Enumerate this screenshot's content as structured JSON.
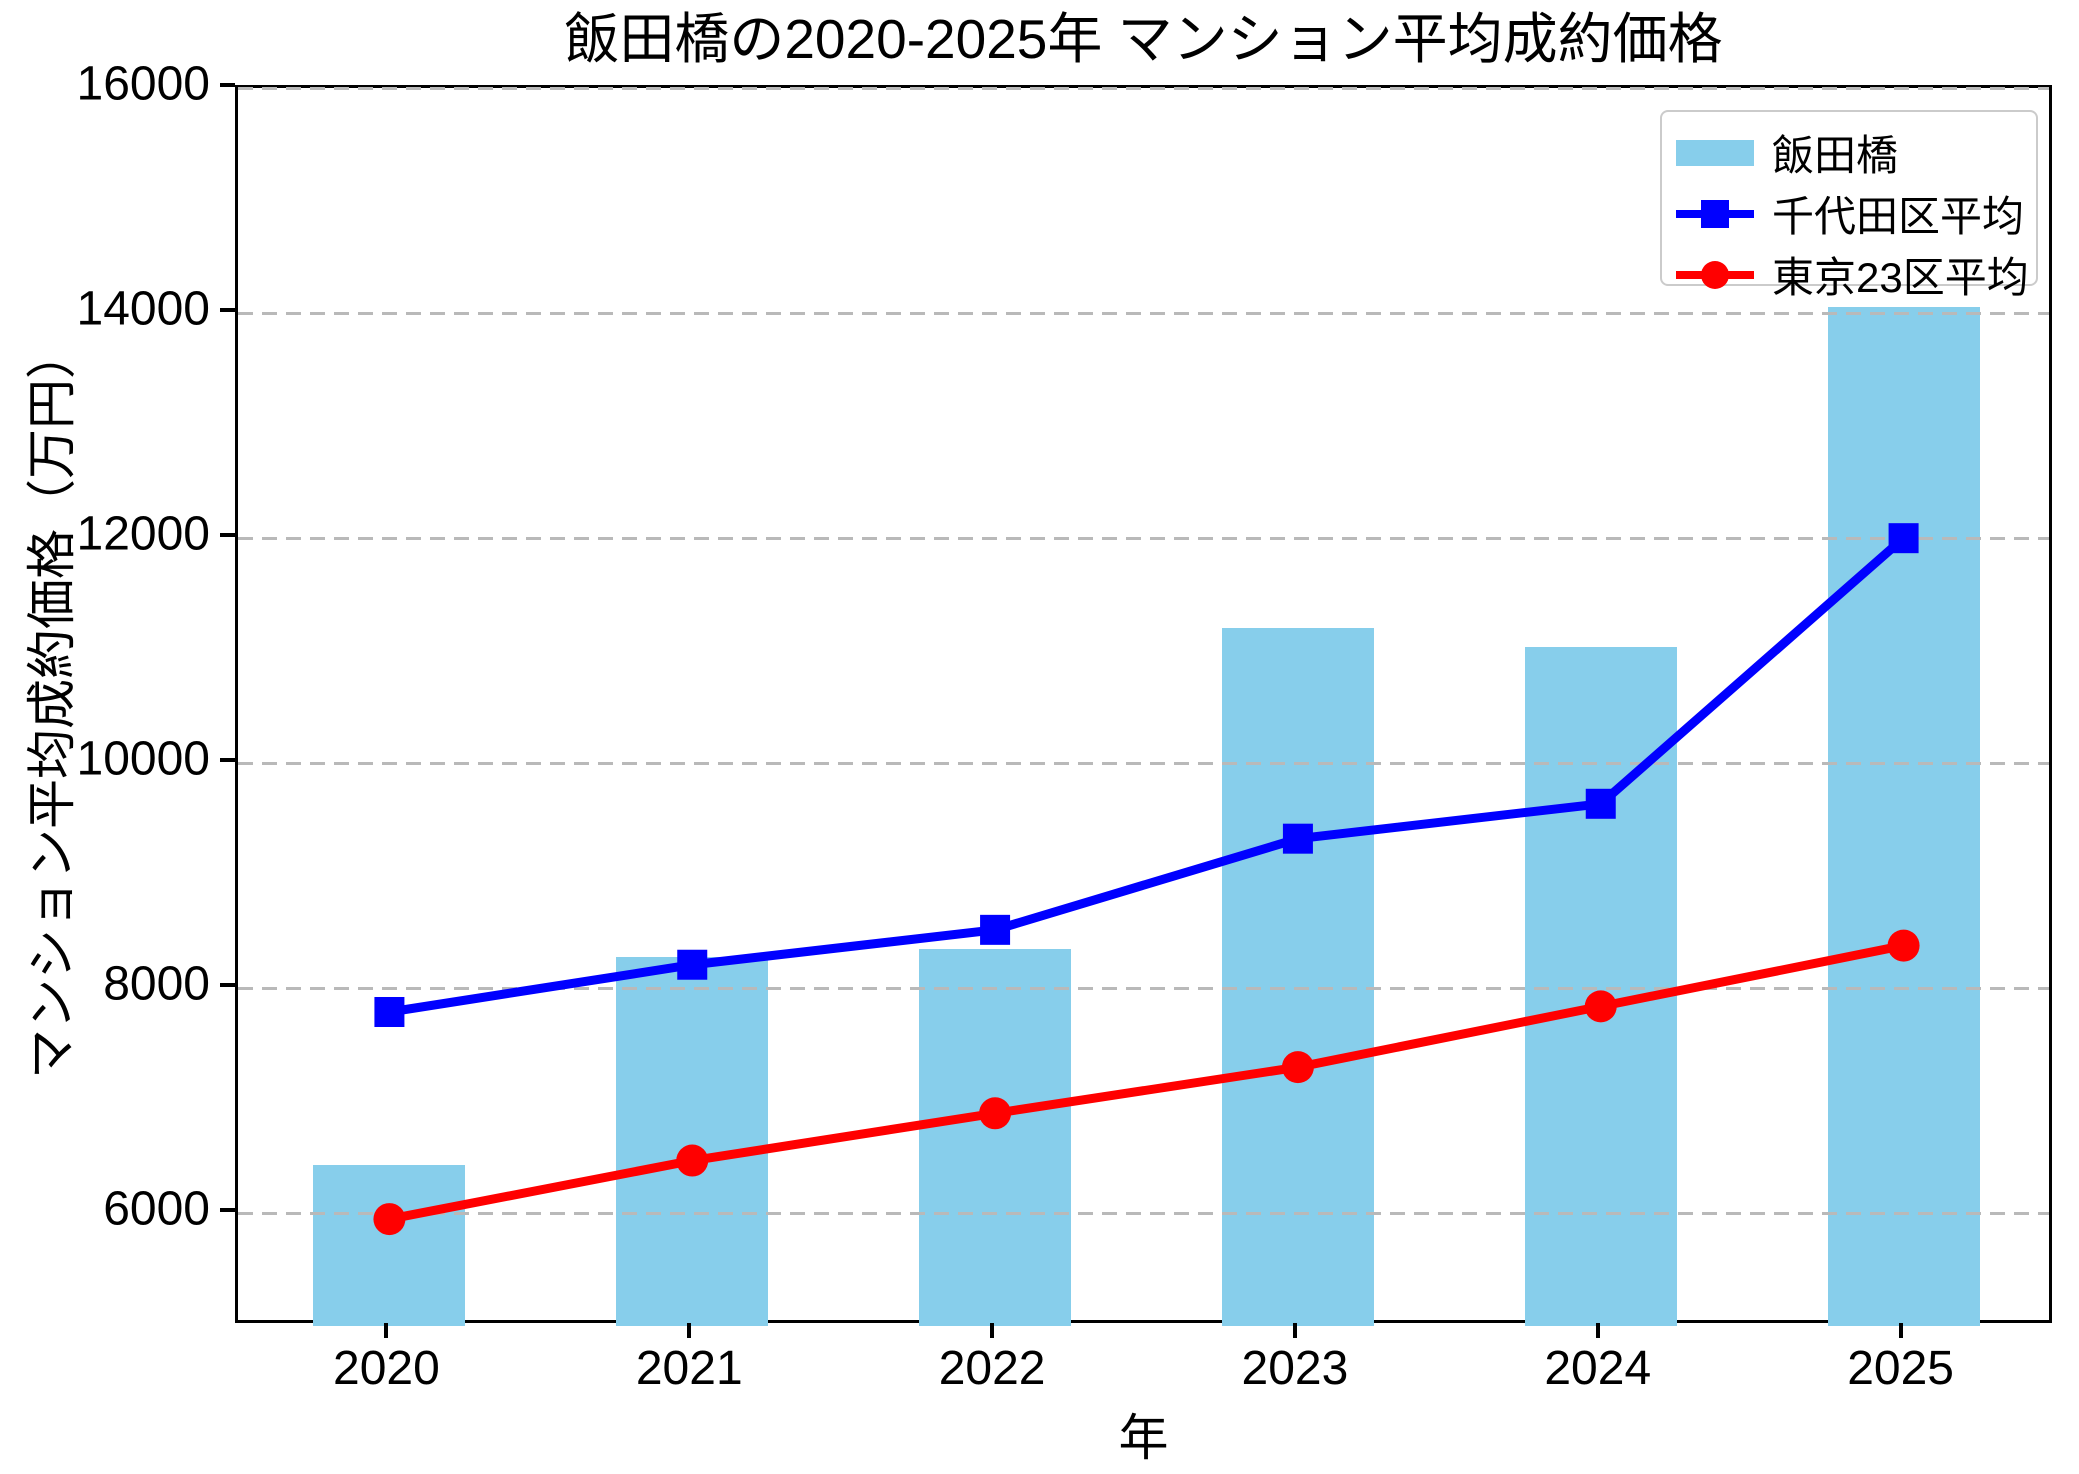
{
  "chart_data": {
    "type": "bar",
    "title": "飯田橋の2020-2025年 マンション平均成約価格",
    "xlabel": "年",
    "ylabel": "マンション平均成約価格（万円）",
    "categories": [
      "2020",
      "2021",
      "2022",
      "2023",
      "2024",
      "2025"
    ],
    "series": [
      {
        "name": "飯田橋",
        "type": "bar",
        "color": "#87CEEB",
        "values": [
          6430,
          8280,
          8350,
          11200,
          11030,
          14050
        ]
      },
      {
        "name": "千代田区平均",
        "type": "line",
        "marker": "square",
        "color": "#0000FF",
        "values": [
          7790,
          8210,
          8520,
          9330,
          9640,
          12000
        ]
      },
      {
        "name": "東京23区平均",
        "type": "line",
        "marker": "circle",
        "color": "#FF0000",
        "values": [
          5950,
          6470,
          6890,
          7300,
          7840,
          8380
        ]
      }
    ],
    "ylim": [
      5000,
      16000
    ],
    "yticks": [
      6000,
      8000,
      10000,
      12000,
      14000,
      16000
    ],
    "ytick_labels": [
      "6000",
      "8000",
      "10000",
      "12000",
      "14000",
      "16000"
    ],
    "grid": "horizontal, dashed, above bars",
    "gridline_color": "#B9B9B9",
    "spine_color": "#000000",
    "background_color": "#FFFFFF",
    "legend_position": "upper right",
    "legend_border_color": "#CBCBCB"
  }
}
